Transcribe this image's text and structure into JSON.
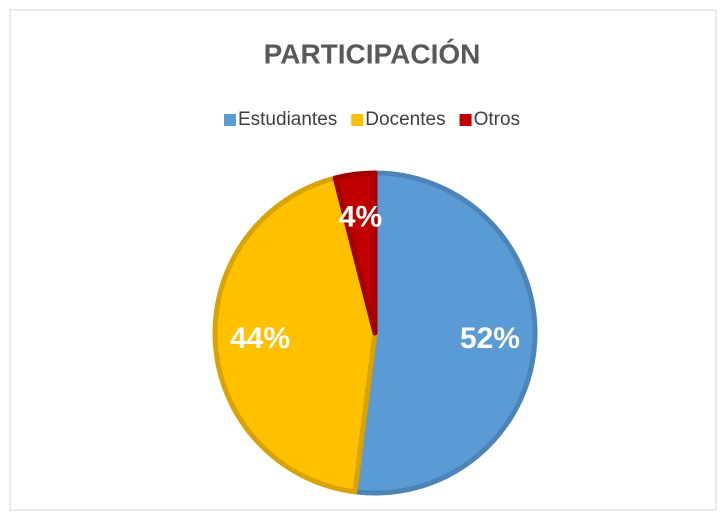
{
  "chart_data": {
    "type": "pie",
    "title": "PARTICIPACIÓN",
    "categories": [
      "Estudiantes",
      "Docentes",
      "Otros"
    ],
    "values": [
      52,
      44,
      4
    ],
    "value_labels": [
      "52%",
      "44%",
      "4%"
    ],
    "colors": [
      "#5b9bd5",
      "#ffc000",
      "#c00000"
    ],
    "legend": "top"
  }
}
